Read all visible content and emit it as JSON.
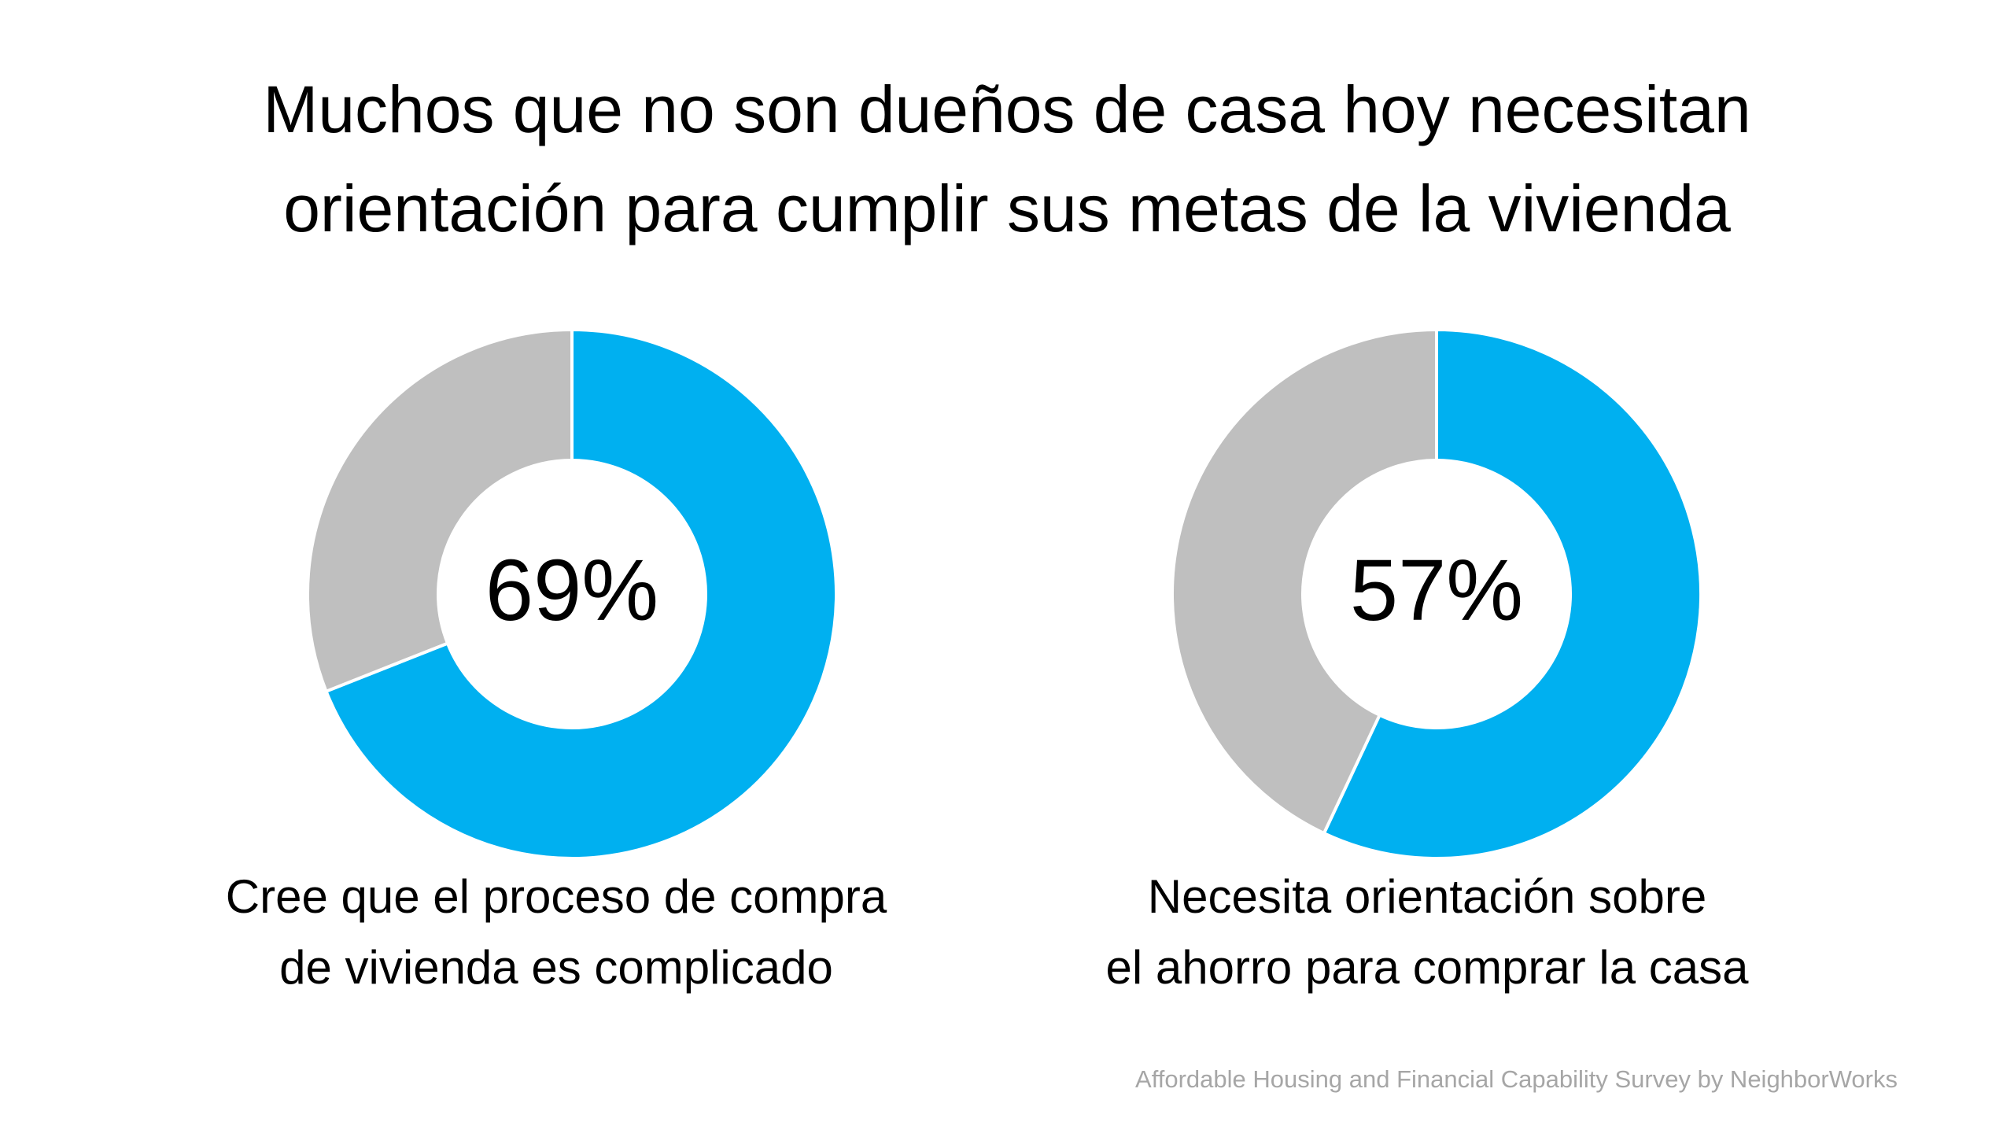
{
  "title": [
    "Muchos que no son dueños de casa hoy necesitan",
    "orientación para cumplir sus metas de la vivienda"
  ],
  "source": "Affordable Housing and Financial Capability Survey by NeighborWorks",
  "chart_data": [
    {
      "type": "donut",
      "values": [
        69,
        31
      ],
      "value_labels": [
        "69%",
        null
      ],
      "colors": [
        "#00b0f0",
        "#bfbfbf"
      ],
      "caption": [
        "Cree que el proceso de compra",
        "de vivienda es complicado"
      ]
    },
    {
      "type": "donut",
      "values": [
        57,
        43
      ],
      "value_labels": [
        "57%",
        null
      ],
      "colors": [
        "#00b0f0",
        "#bfbfbf"
      ],
      "caption": [
        "Necesita orientación sobre",
        "el ahorro para comprar la casa"
      ]
    }
  ]
}
